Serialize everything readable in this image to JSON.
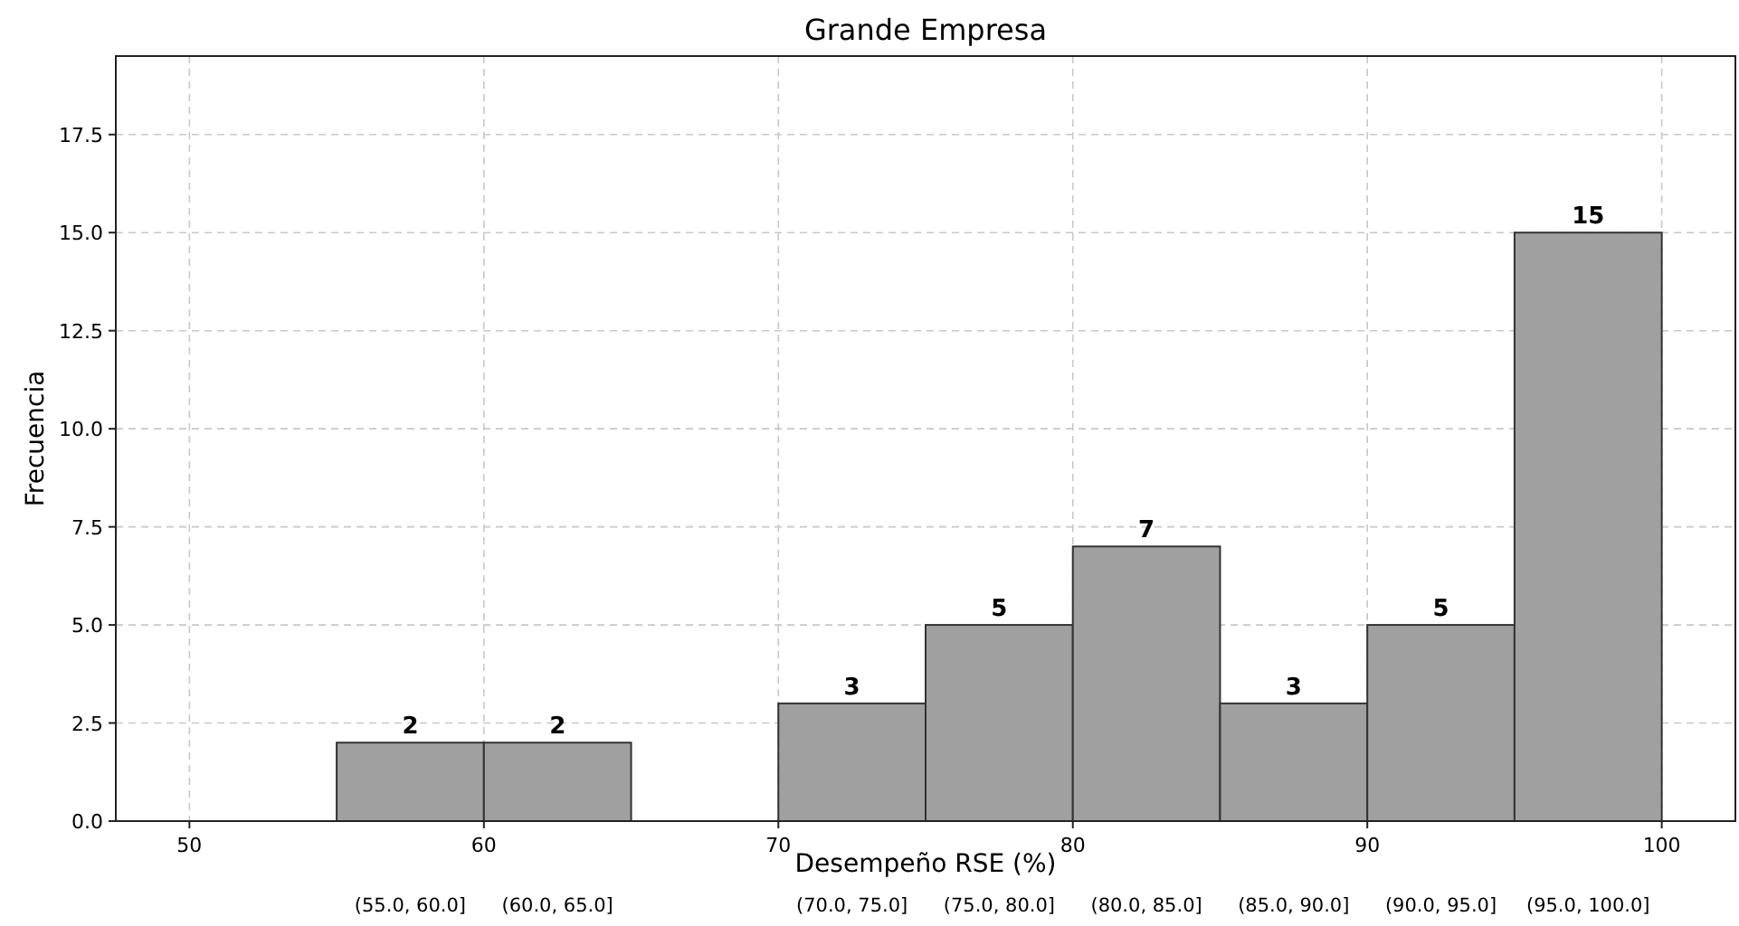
{
  "chart_data": {
    "type": "histogram",
    "title": "Grande Empresa",
    "xlabel": "Desempeño RSE (%)",
    "ylabel": "Frecuencia",
    "bins": [
      55,
      60,
      65,
      70,
      75,
      80,
      85,
      90,
      95,
      100
    ],
    "values": [
      2,
      2,
      0,
      3,
      5,
      7,
      3,
      5,
      15
    ],
    "value_labels": [
      "2",
      "2",
      null,
      "3",
      "5",
      "7",
      "3",
      "5",
      "15"
    ],
    "color": "#a0a0a0",
    "xlim": [
      47.5,
      102.5
    ],
    "ylim": [
      0,
      19.5
    ],
    "xticks": [
      50,
      60,
      70,
      80,
      90,
      100
    ],
    "yticks": [
      {
        "value": 0,
        "label": "0.0"
      },
      {
        "value": 2.5,
        "label": "2.5"
      },
      {
        "value": 5,
        "label": "5.0"
      },
      {
        "value": 7.5,
        "label": "7.5"
      },
      {
        "value": 10,
        "label": "10.0"
      },
      {
        "value": 12.5,
        "label": "12.5"
      },
      {
        "value": 15,
        "label": "15.0"
      },
      {
        "value": 17.5,
        "label": "17.5"
      }
    ],
    "grid": true,
    "annotations": [
      "(55.0, 60.0]",
      "(60.0, 65.0]",
      "(70.0, 75.0]",
      "(75.0, 80.0]",
      "(80.0, 85.0]",
      "(85.0, 90.0]",
      "(90.0, 95.0]",
      "(95.0, 100.0]"
    ]
  }
}
